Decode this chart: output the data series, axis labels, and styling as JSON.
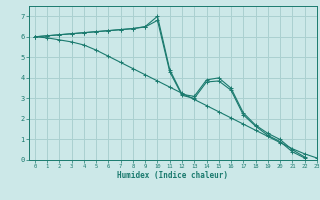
{
  "bg_color": "#cce8e8",
  "grid_color": "#aad0d0",
  "line_color": "#1a7a6e",
  "xlabel": "Humidex (Indice chaleur)",
  "xlim": [
    -0.5,
    23
  ],
  "ylim": [
    0,
    7.5
  ],
  "xticks": [
    0,
    1,
    2,
    3,
    4,
    5,
    6,
    7,
    8,
    9,
    10,
    11,
    12,
    13,
    14,
    15,
    16,
    17,
    18,
    19,
    20,
    21,
    22,
    23
  ],
  "yticks": [
    0,
    1,
    2,
    3,
    4,
    5,
    6,
    7
  ],
  "series": [
    {
      "x": [
        0,
        1,
        2,
        3,
        4,
        5,
        6,
        7,
        8,
        9,
        10,
        11,
        12,
        13,
        14,
        15,
        16,
        17,
        18,
        19,
        20,
        21,
        22
      ],
      "y": [
        6.0,
        6.05,
        6.1,
        6.15,
        6.2,
        6.25,
        6.3,
        6.35,
        6.4,
        6.5,
        7.0,
        4.4,
        3.2,
        3.1,
        3.9,
        4.0,
        3.5,
        2.3,
        1.7,
        1.3,
        1.0,
        0.5,
        0.15
      ]
    },
    {
      "x": [
        0,
        1,
        2,
        3,
        4,
        5,
        6,
        7,
        8,
        9,
        10,
        11,
        12,
        13,
        14,
        15,
        16,
        17,
        18,
        19,
        20,
        21,
        22
      ],
      "y": [
        6.0,
        6.05,
        6.1,
        6.15,
        6.2,
        6.25,
        6.3,
        6.35,
        6.4,
        6.48,
        6.8,
        4.3,
        3.15,
        3.0,
        3.8,
        3.85,
        3.4,
        2.2,
        1.65,
        1.2,
        0.9,
        0.4,
        0.1
      ]
    },
    {
      "x": [
        0,
        1,
        2,
        3,
        4,
        5,
        6,
        7,
        8,
        9,
        10,
        11,
        12,
        13,
        14,
        15,
        16,
        17,
        18,
        19,
        20,
        21,
        22,
        23
      ],
      "y": [
        6.0,
        5.95,
        5.85,
        5.75,
        5.6,
        5.35,
        5.05,
        4.75,
        4.45,
        4.15,
        3.85,
        3.55,
        3.25,
        2.95,
        2.65,
        2.35,
        2.05,
        1.75,
        1.45,
        1.15,
        0.85,
        0.55,
        0.3,
        0.1
      ]
    }
  ]
}
